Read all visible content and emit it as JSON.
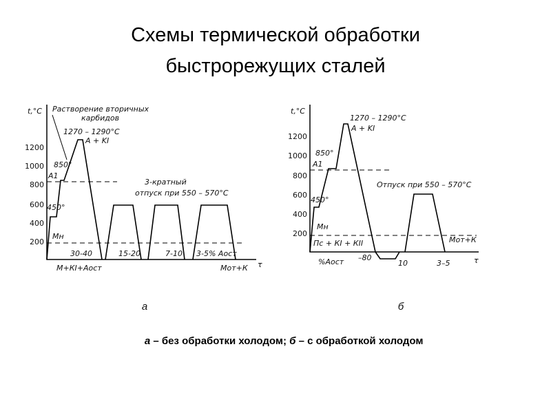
{
  "header": {
    "title_line1": "Схемы термической обработки",
    "title_line2": "быстрорежущих сталей"
  },
  "panels": [
    {
      "y_axis_label": "t,°C",
      "x_axis_label": "τ",
      "yticks": [
        "1200",
        "1000",
        "800",
        "600",
        "400",
        "200"
      ],
      "annotations": [
        "Растворение вторичных",
        "карбидов",
        "1270 – 1290°C",
        "A + KI",
        "850°",
        "A1",
        "450°",
        "Mн",
        "3-кратный",
        "отпуск при 550 – 570°C",
        "30-40",
        "15-20",
        "7-10",
        "3-5% Aост",
        "М+КI+Аост",
        "Мот+К"
      ],
      "label": "а"
    },
    {
      "y_axis_label": "t,°C",
      "x_axis_label": "τ",
      "yticks": [
        "1200",
        "1000",
        "800",
        "600",
        "400",
        "200"
      ],
      "annotations": [
        "1270 – 1290°C",
        "A + KI",
        "850°",
        "A1",
        "450°",
        "Mн",
        "Пс + КI + КII",
        "%Aост",
        "–80",
        "Отпуск при 550 – 570°C",
        "Мот+К",
        "10",
        "3–5"
      ],
      "label": "б"
    }
  ],
  "caption": {
    "a": "а",
    "a_text": " – без обработки холодом; ",
    "b": "б",
    "b_text": " – с обработкой холодом"
  }
}
